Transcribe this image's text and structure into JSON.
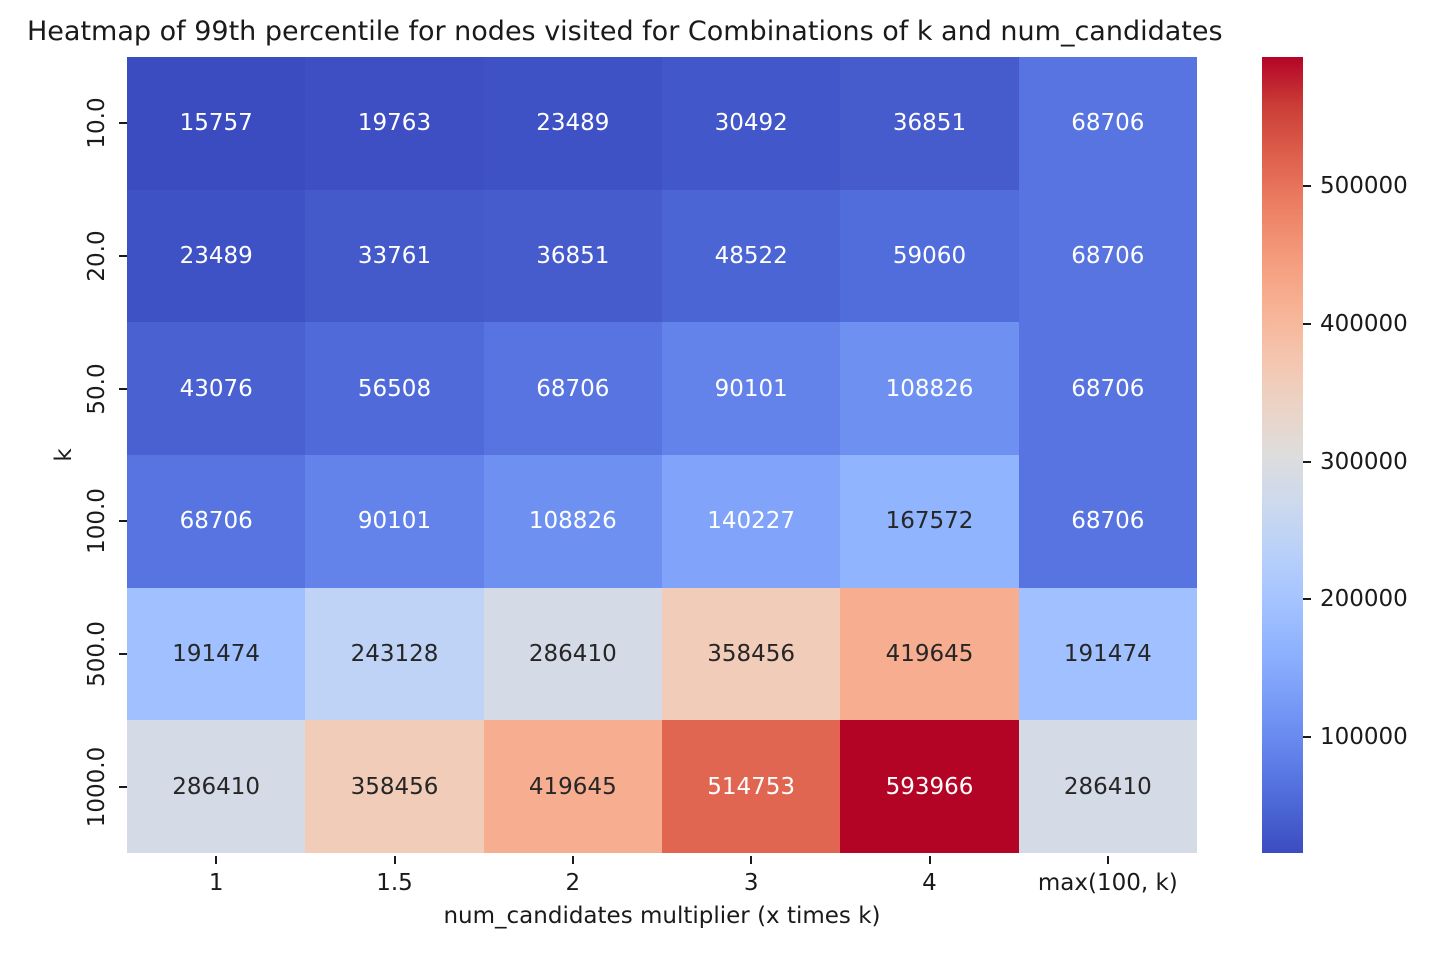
{
  "figure": {
    "background": "#ffffff",
    "text_color": "#1a1a1a"
  },
  "chart_data": {
    "type": "heatmap",
    "title": "Heatmap of 99th percentile for nodes visited for Combinations of k and num_candidates",
    "xlabel": "num_candidates multiplier (x times k)",
    "ylabel": "k",
    "x_categories": [
      "1",
      "1.5",
      "2",
      "3",
      "4",
      "max(100, k)"
    ],
    "y_categories": [
      "10.0",
      "20.0",
      "50.0",
      "100.0",
      "500.0",
      "1000.0"
    ],
    "values": [
      [
        15757,
        19763,
        23489,
        30492,
        36851,
        68706
      ],
      [
        23489,
        33761,
        36851,
        48522,
        59060,
        68706
      ],
      [
        43076,
        56508,
        68706,
        90101,
        108826,
        68706
      ],
      [
        68706,
        90101,
        108826,
        140227,
        167572,
        68706
      ],
      [
        191474,
        243128,
        286410,
        358456,
        419645,
        191474
      ],
      [
        286410,
        358456,
        419645,
        514753,
        593966,
        286410
      ]
    ],
    "vmin": 15757,
    "vmax": 593966,
    "grid": "off",
    "legend_position": "right-colorbar",
    "colormap": {
      "name": "coolwarm",
      "stops": [
        "#3b4cc0",
        "#4d68d7",
        "#6282ea",
        "#779af7",
        "#8db0fe",
        "#a3c2ff",
        "#b8d0f9",
        "#ccd9ee",
        "#dddddd",
        "#ecd3c5",
        "#f5c4ad",
        "#f7b194",
        "#f49a7b",
        "#ec7f63",
        "#de604d",
        "#cb3e38",
        "#b40426"
      ]
    },
    "colorbar_ticks": [
      100000,
      200000,
      300000,
      400000,
      500000
    ],
    "annotation_colors": {
      "light": "#ffffff",
      "dark": "#262626"
    }
  }
}
